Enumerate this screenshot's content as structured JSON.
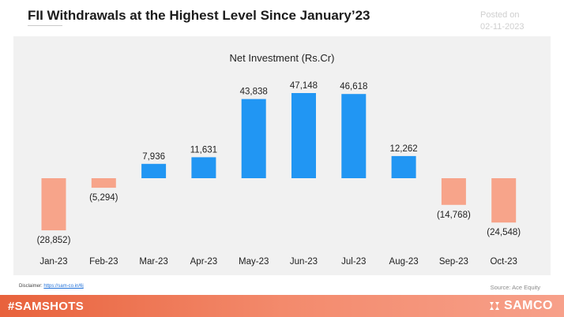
{
  "header": {
    "title": "FII Withdrawals at the Highest Level Since January’23",
    "posted_label": "Posted on",
    "posted_date": "02-11-2023"
  },
  "colors": {
    "positive": "#2196f3",
    "negative": "#f7a48a",
    "panel": "#f1f1f1",
    "footer_start": "#e8623c",
    "footer_end": "#f7a08a"
  },
  "chart_data": {
    "type": "bar",
    "title": "Net Investment (Rs.Cr)",
    "xlabel": "",
    "ylabel": "",
    "categories": [
      "Jan-23",
      "Feb-23",
      "Mar-23",
      "Apr-23",
      "May-23",
      "Jun-23",
      "Jul-23",
      "Aug-23",
      "Sep-23",
      "Oct-23"
    ],
    "values": [
      -28852,
      -5294,
      7936,
      11631,
      43838,
      47148,
      46618,
      12262,
      -14768,
      -24548
    ],
    "value_labels": [
      "(28,852)",
      "(5,294)",
      "7,936",
      "11,631",
      "43,838",
      "47,148",
      "46,618",
      "12,262",
      "(14,768)",
      "(24,548)"
    ],
    "grid": false,
    "legend": "none"
  },
  "footer": {
    "disclaimer_label": "Disclaimer: ",
    "disclaimer_link": "https://sam-co.in/6j",
    "source": "Source:  Ace Equity",
    "hashtag": "#SAMSHOTS",
    "brand": "SAMCO",
    "brand_icon": "samco-logo-icon"
  }
}
